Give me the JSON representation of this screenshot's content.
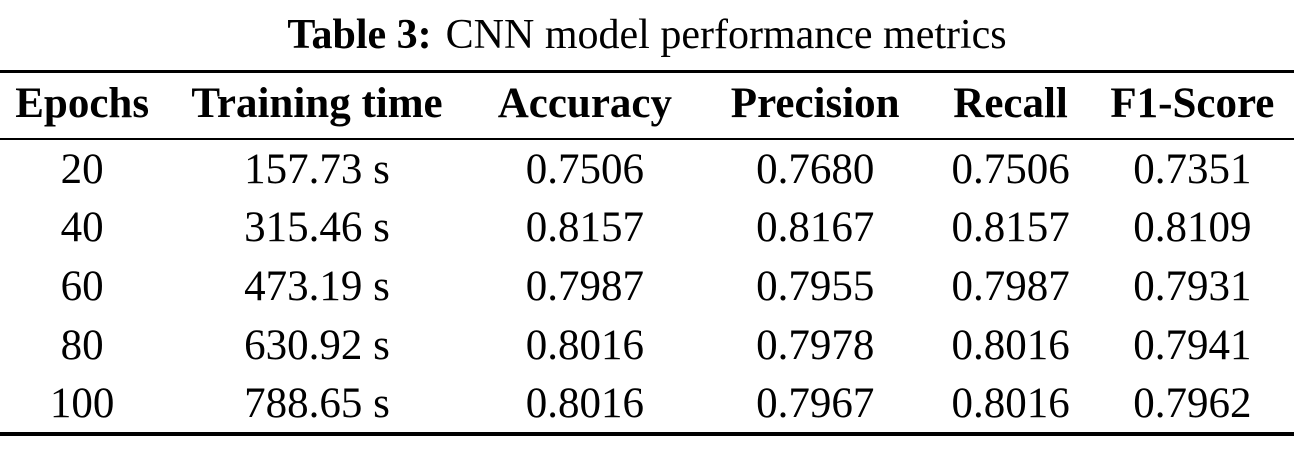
{
  "caption": {
    "label": "Table 3:",
    "text": "CNN model performance metrics"
  },
  "table": {
    "columns": [
      "Epochs",
      "Training time",
      "Accuracy",
      "Precision",
      "Recall",
      "F1-Score"
    ],
    "rows": [
      [
        "20",
        "157.73 s",
        "0.7506",
        "0.7680",
        "0.7506",
        "0.7351"
      ],
      [
        "40",
        "315.46 s",
        "0.8157",
        "0.8167",
        "0.8157",
        "0.8109"
      ],
      [
        "60",
        "473.19 s",
        "0.7987",
        "0.7955",
        "0.7987",
        "0.7931"
      ],
      [
        "80",
        "630.92 s",
        "0.8016",
        "0.7978",
        "0.8016",
        "0.7941"
      ],
      [
        "100",
        "788.65 s",
        "0.8016",
        "0.7967",
        "0.8016",
        "0.7962"
      ]
    ]
  },
  "colors": {
    "background": "#ffffff",
    "text": "#000000",
    "rule": "#000000"
  }
}
